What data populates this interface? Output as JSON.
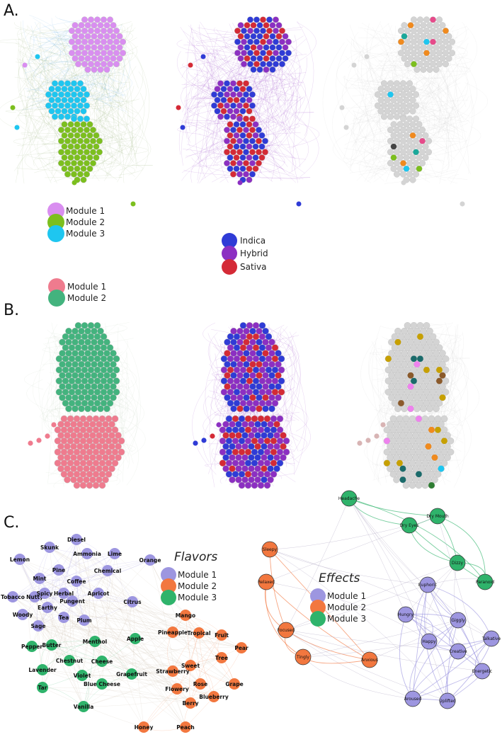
{
  "panels": {
    "a_label": "A.",
    "b_label": "B.",
    "c_label": "C."
  },
  "colors": {
    "a_module1": "#d98ef0",
    "a_module2": "#7cbf1e",
    "a_module3": "#1ec6f0",
    "indica": "#2f3bd6",
    "hybrid": "#8c2fc2",
    "sativa": "#d42a36",
    "b_module1": "#ef7b8e",
    "b_module2": "#43b37e",
    "c_module1": "#9d96e0",
    "c_module2": "#f2773f",
    "c_module3": "#2fb36b",
    "grey_node": "#d4d4d4"
  },
  "legends": {
    "a_modules": [
      "Module 1",
      "Module 2",
      "Module 3"
    ],
    "strain_types": [
      "Indica",
      "Hybrid",
      "Sativa"
    ],
    "b_modules": [
      "Module 1",
      "Module 2"
    ],
    "flavors_title": "Flavors",
    "flavors_modules": [
      "Module 1",
      "Module 2",
      "Module 3"
    ],
    "effects_title": "Effects",
    "effects_modules": [
      "Module 1",
      "Module 2",
      "Module 3"
    ]
  },
  "flavor_nodes": [
    {
      "name": "Diesel",
      "module": 1
    },
    {
      "name": "Skunk",
      "module": 1
    },
    {
      "name": "Ammonia",
      "module": 1
    },
    {
      "name": "Lime",
      "module": 1
    },
    {
      "name": "Lemon",
      "module": 1
    },
    {
      "name": "Orange",
      "module": 1
    },
    {
      "name": "Pine",
      "module": 1
    },
    {
      "name": "Chemical",
      "module": 1
    },
    {
      "name": "Mint",
      "module": 1
    },
    {
      "name": "Coffee",
      "module": 1
    },
    {
      "name": "Tobacco",
      "module": 1
    },
    {
      "name": "Nutty",
      "module": 1
    },
    {
      "name": "Spicy",
      "module": 1
    },
    {
      "name": "Herbal",
      "module": 1
    },
    {
      "name": "Apricot",
      "module": 1
    },
    {
      "name": "Pungent",
      "module": 1
    },
    {
      "name": "Citrus",
      "module": 1
    },
    {
      "name": "Earthy",
      "module": 1
    },
    {
      "name": "Woody",
      "module": 1
    },
    {
      "name": "Tea",
      "module": 1
    },
    {
      "name": "Plum",
      "module": 1
    },
    {
      "name": "Sage",
      "module": 1
    },
    {
      "name": "Mango",
      "module": 2
    },
    {
      "name": "Pineapple",
      "module": 2
    },
    {
      "name": "Tropical",
      "module": 2
    },
    {
      "name": "Fruit",
      "module": 2
    },
    {
      "name": "Pear",
      "module": 2
    },
    {
      "name": "Tree",
      "module": 2
    },
    {
      "name": "Sweet",
      "module": 2
    },
    {
      "name": "Strawberry",
      "module": 2
    },
    {
      "name": "Grape",
      "module": 2
    },
    {
      "name": "Rose",
      "module": 2
    },
    {
      "name": "Flowery",
      "module": 2
    },
    {
      "name": "Berry",
      "module": 2
    },
    {
      "name": "Blueberry",
      "module": 2
    },
    {
      "name": "Honey",
      "module": 2
    },
    {
      "name": "Peach",
      "module": 2
    },
    {
      "name": "Pepper",
      "module": 3
    },
    {
      "name": "Butter",
      "module": 3
    },
    {
      "name": "Menthol",
      "module": 3
    },
    {
      "name": "Apple",
      "module": 3
    },
    {
      "name": "Chestnut",
      "module": 3
    },
    {
      "name": "Cheese",
      "module": 3
    },
    {
      "name": "Lavender",
      "module": 3
    },
    {
      "name": "Violet",
      "module": 3
    },
    {
      "name": "Grapefruit",
      "module": 3
    },
    {
      "name": "Tar",
      "module": 3
    },
    {
      "name": "Blue Cheese",
      "module": 3
    },
    {
      "name": "Vanilla",
      "module": 3
    }
  ],
  "effect_nodes": [
    {
      "name": "Headache",
      "module": 3
    },
    {
      "name": "Dry Mouth",
      "module": 3
    },
    {
      "name": "Dry Eyes",
      "module": 3
    },
    {
      "name": "Dizzy",
      "module": 3
    },
    {
      "name": "Paranoid",
      "module": 3
    },
    {
      "name": "Sleepy",
      "module": 2
    },
    {
      "name": "Relaxed",
      "module": 2
    },
    {
      "name": "Focused",
      "module": 2
    },
    {
      "name": "Tingly",
      "module": 2
    },
    {
      "name": "Anxious",
      "module": 2
    },
    {
      "name": "Euphoric",
      "module": 1
    },
    {
      "name": "Hungry",
      "module": 1
    },
    {
      "name": "Giggly",
      "module": 1
    },
    {
      "name": "Happy",
      "module": 1
    },
    {
      "name": "Talkative",
      "module": 1
    },
    {
      "name": "Creative",
      "module": 1
    },
    {
      "name": "Energetic",
      "module": 1
    },
    {
      "name": "Aroused",
      "module": 1
    },
    {
      "name": "Uplifted",
      "module": 1
    }
  ]
}
